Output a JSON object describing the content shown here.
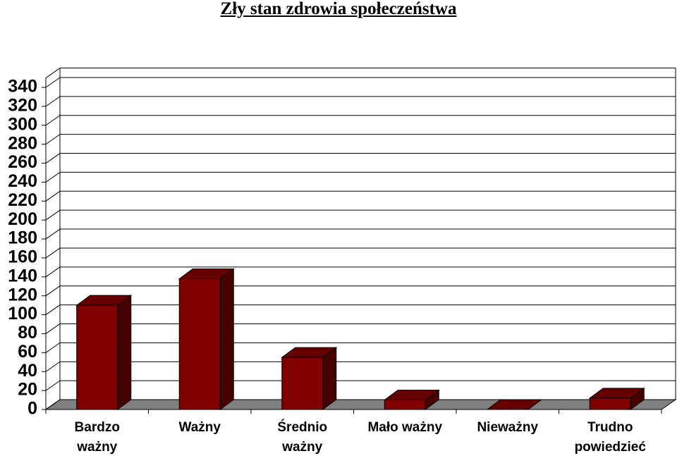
{
  "chart_data": {
    "type": "bar3d",
    "title": "Zły stan zdrowia społeczeństwa",
    "categories": [
      "Bardzo ważny",
      "Ważny",
      "Średnio ważny",
      "Mało ważny",
      "Nieważny",
      "Trudno powiedzieć"
    ],
    "values": [
      110,
      138,
      55,
      10,
      0,
      12
    ],
    "color": "#800000",
    "ylim": [
      0,
      350
    ],
    "yticks": [
      0,
      20,
      40,
      60,
      80,
      100,
      120,
      140,
      160,
      180,
      200,
      220,
      240,
      260,
      280,
      300,
      320,
      340
    ],
    "grid": true
  }
}
